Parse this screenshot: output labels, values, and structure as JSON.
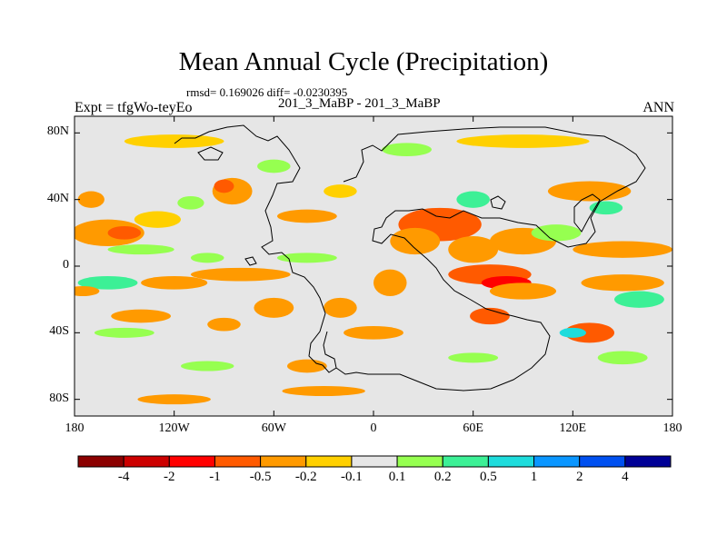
{
  "title": "Mean Annual Cycle (Precipitation)",
  "stats": "rmsd= 0.169026 diff= -0.0230395",
  "expt_label": "Expt = tfgWo-teyEo",
  "subtitle": "201_3_MaBP - 201_3_MaBP",
  "season": "ANN",
  "chart_data": {
    "type": "heatmap",
    "title": "Mean Annual Cycle (Precipitation)",
    "x_range": [
      -180,
      180
    ],
    "y_range": [
      -90,
      90
    ],
    "x_ticks": [
      {
        "value": -180,
        "label": "180"
      },
      {
        "value": -120,
        "label": "120W"
      },
      {
        "value": -60,
        "label": "60W"
      },
      {
        "value": 0,
        "label": "0"
      },
      {
        "value": 60,
        "label": "60E"
      },
      {
        "value": 120,
        "label": "120E"
      },
      {
        "value": 180,
        "label": "180"
      }
    ],
    "y_ticks": [
      {
        "value": 80,
        "label": "80N"
      },
      {
        "value": 40,
        "label": "40N"
      },
      {
        "value": 0,
        "label": "0"
      },
      {
        "value": -40,
        "label": "40S"
      },
      {
        "value": -80,
        "label": "80S"
      }
    ],
    "colorbar": {
      "colors": [
        "#8b0000",
        "#cc0000",
        "#ff0000",
        "#ff5a00",
        "#ff9a00",
        "#ffd000",
        "#e6e6e6",
        "#96ff50",
        "#3cf096",
        "#1edcdc",
        "#0a96ff",
        "#0050f0",
        "#000096"
      ],
      "labels": [
        "-4",
        "-2",
        "-1",
        "-0.5",
        "-0.2",
        "-0.1",
        "0.1",
        "0.2",
        "0.5",
        "1",
        "2",
        "4"
      ]
    },
    "anomalies": [
      {
        "lon": -160,
        "lat": 20,
        "rx": 22,
        "ry": 8,
        "level": 4
      },
      {
        "lon": -150,
        "lat": 20,
        "rx": 10,
        "ry": 4,
        "level": 3
      },
      {
        "lon": -130,
        "lat": 28,
        "rx": 14,
        "ry": 5,
        "level": 5
      },
      {
        "lon": -140,
        "lat": 10,
        "rx": 20,
        "ry": 3,
        "level": 7
      },
      {
        "lon": -110,
        "lat": 38,
        "rx": 8,
        "ry": 4,
        "level": 7
      },
      {
        "lon": -85,
        "lat": 45,
        "rx": 12,
        "ry": 8,
        "level": 4
      },
      {
        "lon": -90,
        "lat": 48,
        "rx": 6,
        "ry": 4,
        "level": 3
      },
      {
        "lon": -80,
        "lat": -5,
        "rx": 30,
        "ry": 4,
        "level": 4
      },
      {
        "lon": -120,
        "lat": -10,
        "rx": 20,
        "ry": 4,
        "level": 4
      },
      {
        "lon": -160,
        "lat": -10,
        "rx": 18,
        "ry": 4,
        "level": 8
      },
      {
        "lon": -175,
        "lat": -15,
        "rx": 10,
        "ry": 3,
        "level": 4
      },
      {
        "lon": -140,
        "lat": -30,
        "rx": 18,
        "ry": 4,
        "level": 4
      },
      {
        "lon": -90,
        "lat": -35,
        "rx": 10,
        "ry": 4,
        "level": 4
      },
      {
        "lon": -150,
        "lat": -40,
        "rx": 18,
        "ry": 3,
        "level": 7
      },
      {
        "lon": -60,
        "lat": -25,
        "rx": 12,
        "ry": 6,
        "level": 4
      },
      {
        "lon": -20,
        "lat": -25,
        "rx": 10,
        "ry": 6,
        "level": 4
      },
      {
        "lon": -40,
        "lat": -60,
        "rx": 12,
        "ry": 4,
        "level": 4
      },
      {
        "lon": -120,
        "lat": -80,
        "rx": 22,
        "ry": 3,
        "level": 4
      },
      {
        "lon": -100,
        "lat": -60,
        "rx": 16,
        "ry": 3,
        "level": 7
      },
      {
        "lon": -40,
        "lat": 30,
        "rx": 18,
        "ry": 4,
        "level": 4
      },
      {
        "lon": -20,
        "lat": 45,
        "rx": 10,
        "ry": 4,
        "level": 5
      },
      {
        "lon": 10,
        "lat": -10,
        "rx": 10,
        "ry": 8,
        "level": 4
      },
      {
        "lon": 0,
        "lat": -40,
        "rx": 18,
        "ry": 4,
        "level": 4
      },
      {
        "lon": 40,
        "lat": 25,
        "rx": 25,
        "ry": 10,
        "level": 3
      },
      {
        "lon": 25,
        "lat": 15,
        "rx": 15,
        "ry": 8,
        "level": 4
      },
      {
        "lon": 60,
        "lat": 10,
        "rx": 15,
        "ry": 8,
        "level": 4
      },
      {
        "lon": 70,
        "lat": -5,
        "rx": 25,
        "ry": 6,
        "level": 3
      },
      {
        "lon": 80,
        "lat": -10,
        "rx": 15,
        "ry": 4,
        "level": 2
      },
      {
        "lon": 70,
        "lat": -30,
        "rx": 12,
        "ry": 5,
        "level": 3
      },
      {
        "lon": 90,
        "lat": -15,
        "rx": 20,
        "ry": 5,
        "level": 4
      },
      {
        "lon": 90,
        "lat": 15,
        "rx": 20,
        "ry": 8,
        "level": 4
      },
      {
        "lon": 110,
        "lat": 20,
        "rx": 15,
        "ry": 5,
        "level": 7
      },
      {
        "lon": 150,
        "lat": 10,
        "rx": 30,
        "ry": 5,
        "level": 4
      },
      {
        "lon": 150,
        "lat": -10,
        "rx": 25,
        "ry": 5,
        "level": 4
      },
      {
        "lon": 130,
        "lat": -40,
        "rx": 15,
        "ry": 6,
        "level": 3
      },
      {
        "lon": 160,
        "lat": -20,
        "rx": 15,
        "ry": 5,
        "level": 8
      },
      {
        "lon": 120,
        "lat": -40,
        "rx": 8,
        "ry": 3,
        "level": 9
      },
      {
        "lon": 150,
        "lat": -55,
        "rx": 15,
        "ry": 4,
        "level": 7
      },
      {
        "lon": 60,
        "lat": -55,
        "rx": 15,
        "ry": 3,
        "level": 7
      },
      {
        "lon": 90,
        "lat": 75,
        "rx": 40,
        "ry": 4,
        "level": 5
      },
      {
        "lon": -120,
        "lat": 75,
        "rx": 30,
        "ry": 4,
        "level": 5
      },
      {
        "lon": 20,
        "lat": 70,
        "rx": 15,
        "ry": 4,
        "level": 7
      },
      {
        "lon": 130,
        "lat": 45,
        "rx": 25,
        "ry": 6,
        "level": 4
      },
      {
        "lon": 140,
        "lat": 35,
        "rx": 10,
        "ry": 4,
        "level": 8
      },
      {
        "lon": 60,
        "lat": 40,
        "rx": 10,
        "ry": 5,
        "level": 8
      },
      {
        "lon": -40,
        "lat": 5,
        "rx": 18,
        "ry": 3,
        "level": 7
      },
      {
        "lon": -100,
        "lat": 5,
        "rx": 10,
        "ry": 3,
        "level": 7
      },
      {
        "lon": -170,
        "lat": 40,
        "rx": 8,
        "ry": 5,
        "level": 4
      },
      {
        "lon": -30,
        "lat": -75,
        "rx": 25,
        "ry": 3,
        "level": 4
      },
      {
        "lon": -60,
        "lat": 60,
        "rx": 10,
        "ry": 4,
        "level": 7
      }
    ]
  }
}
